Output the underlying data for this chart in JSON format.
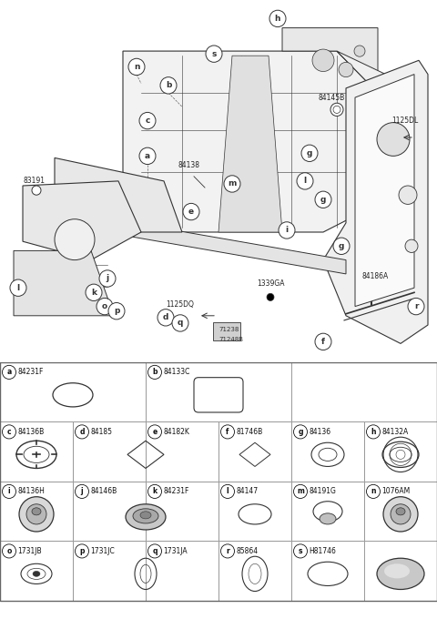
{
  "bg_color": "#ffffff",
  "line_color": "#333333",
  "grid_color": "#999999",
  "text_color": "#111111",
  "rows": [
    {
      "cells": [
        {
          "letter": "a",
          "code": "84231F",
          "span": 1
        },
        {
          "letter": "b",
          "code": "84133C",
          "span": 1
        }
      ],
      "ncols": 2
    },
    {
      "cells": [
        {
          "letter": "c",
          "code": "84136B",
          "span": 1
        },
        {
          "letter": "d",
          "code": "84185",
          "span": 1
        },
        {
          "letter": "e",
          "code": "84182K",
          "span": 1
        },
        {
          "letter": "f",
          "code": "81746B",
          "span": 1
        },
        {
          "letter": "g",
          "code": "84136",
          "span": 1
        },
        {
          "letter": "h",
          "code": "84132A",
          "span": 1
        }
      ],
      "ncols": 6
    },
    {
      "cells": [
        {
          "letter": "i",
          "code": "84136H",
          "span": 1
        },
        {
          "letter": "j",
          "code": "84146B",
          "span": 1
        },
        {
          "letter": "k",
          "code": "84231F",
          "span": 1
        },
        {
          "letter": "l",
          "code": "84147",
          "span": 1
        },
        {
          "letter": "m",
          "code": "84191G",
          "span": 1
        },
        {
          "letter": "n",
          "code": "1076AM",
          "span": 1
        }
      ],
      "ncols": 6
    },
    {
      "cells": [
        {
          "letter": "o",
          "code": "1731JB",
          "span": 1
        },
        {
          "letter": "p",
          "code": "1731JC",
          "span": 1
        },
        {
          "letter": "q",
          "code": "1731JA",
          "span": 1
        },
        {
          "letter": "r",
          "code": "85864",
          "span": 1
        },
        {
          "letter": "s",
          "code": "H81746",
          "span": 1
        }
      ],
      "ncols": 6
    }
  ]
}
